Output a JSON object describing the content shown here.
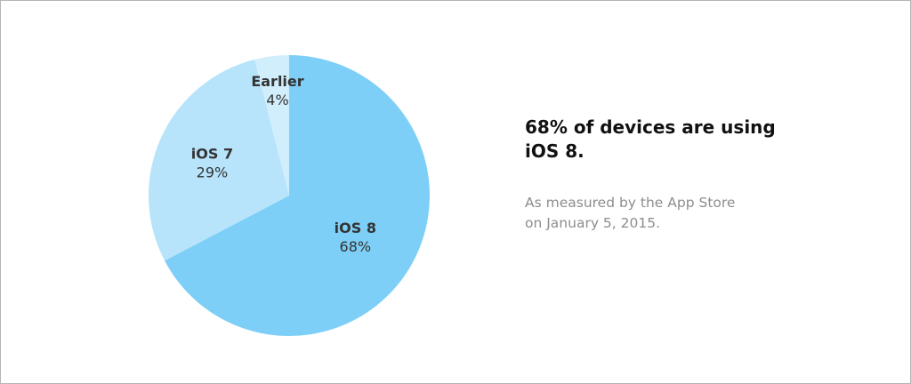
{
  "chart_data": {
    "type": "pie",
    "slices": [
      {
        "name": "iOS 8",
        "value": 68,
        "label_value": "68%",
        "color": "#7ecff7"
      },
      {
        "name": "iOS 7",
        "value": 29,
        "label_value": "29%",
        "color": "#b7e4fb"
      },
      {
        "name": "Earlier",
        "value": 4,
        "label_value": "4%",
        "color": "#d1eefc"
      }
    ]
  },
  "headline": {
    "line1": "68% of devices are using",
    "line2": "iOS 8."
  },
  "note": {
    "line1": "As measured by the App Store",
    "line2": "on January 5, 2015."
  }
}
